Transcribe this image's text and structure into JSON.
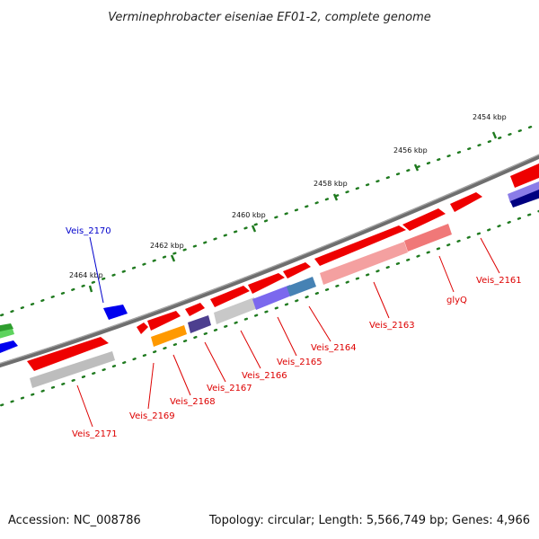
{
  "title": "Verminephrobacter eiseniae EF01-2, complete genome",
  "colors": {
    "backbone": "#7a7a7a",
    "tick": "#1f7a1f",
    "gene_red": "#ee0000",
    "gene_gray": "#bdbdbd",
    "gene_orange": "#ff9900",
    "gene_purple": "#5b4f9e",
    "gene_violet": "#7b68ee",
    "gene_steel": "#4682b4",
    "gene_blue": "#0000ee",
    "gene_navy": "#000080",
    "gene_green": "#33bb33",
    "gene_pink": "#f08080",
    "label_red": "#dd0000",
    "label_blue": "#0000cc"
  },
  "ticks": [
    "2454 kbp",
    "2456 kbp",
    "2458 kbp",
    "2460 kbp",
    "2462 kbp",
    "2464 kbp"
  ],
  "gene_labels": [
    "Veis_2161",
    "glyQ",
    "Veis_2163",
    "Veis_2164",
    "Veis_2165",
    "Veis_2166",
    "Veis_2167",
    "Veis_2168",
    "Veis_2169",
    "Veis_2171"
  ],
  "highlight_label": "Veis_2170",
  "footer": {
    "accession": "Accession: NC_008786",
    "summary": "Topology: circular; Length: 5,566,749 bp; Genes: 4,966"
  }
}
